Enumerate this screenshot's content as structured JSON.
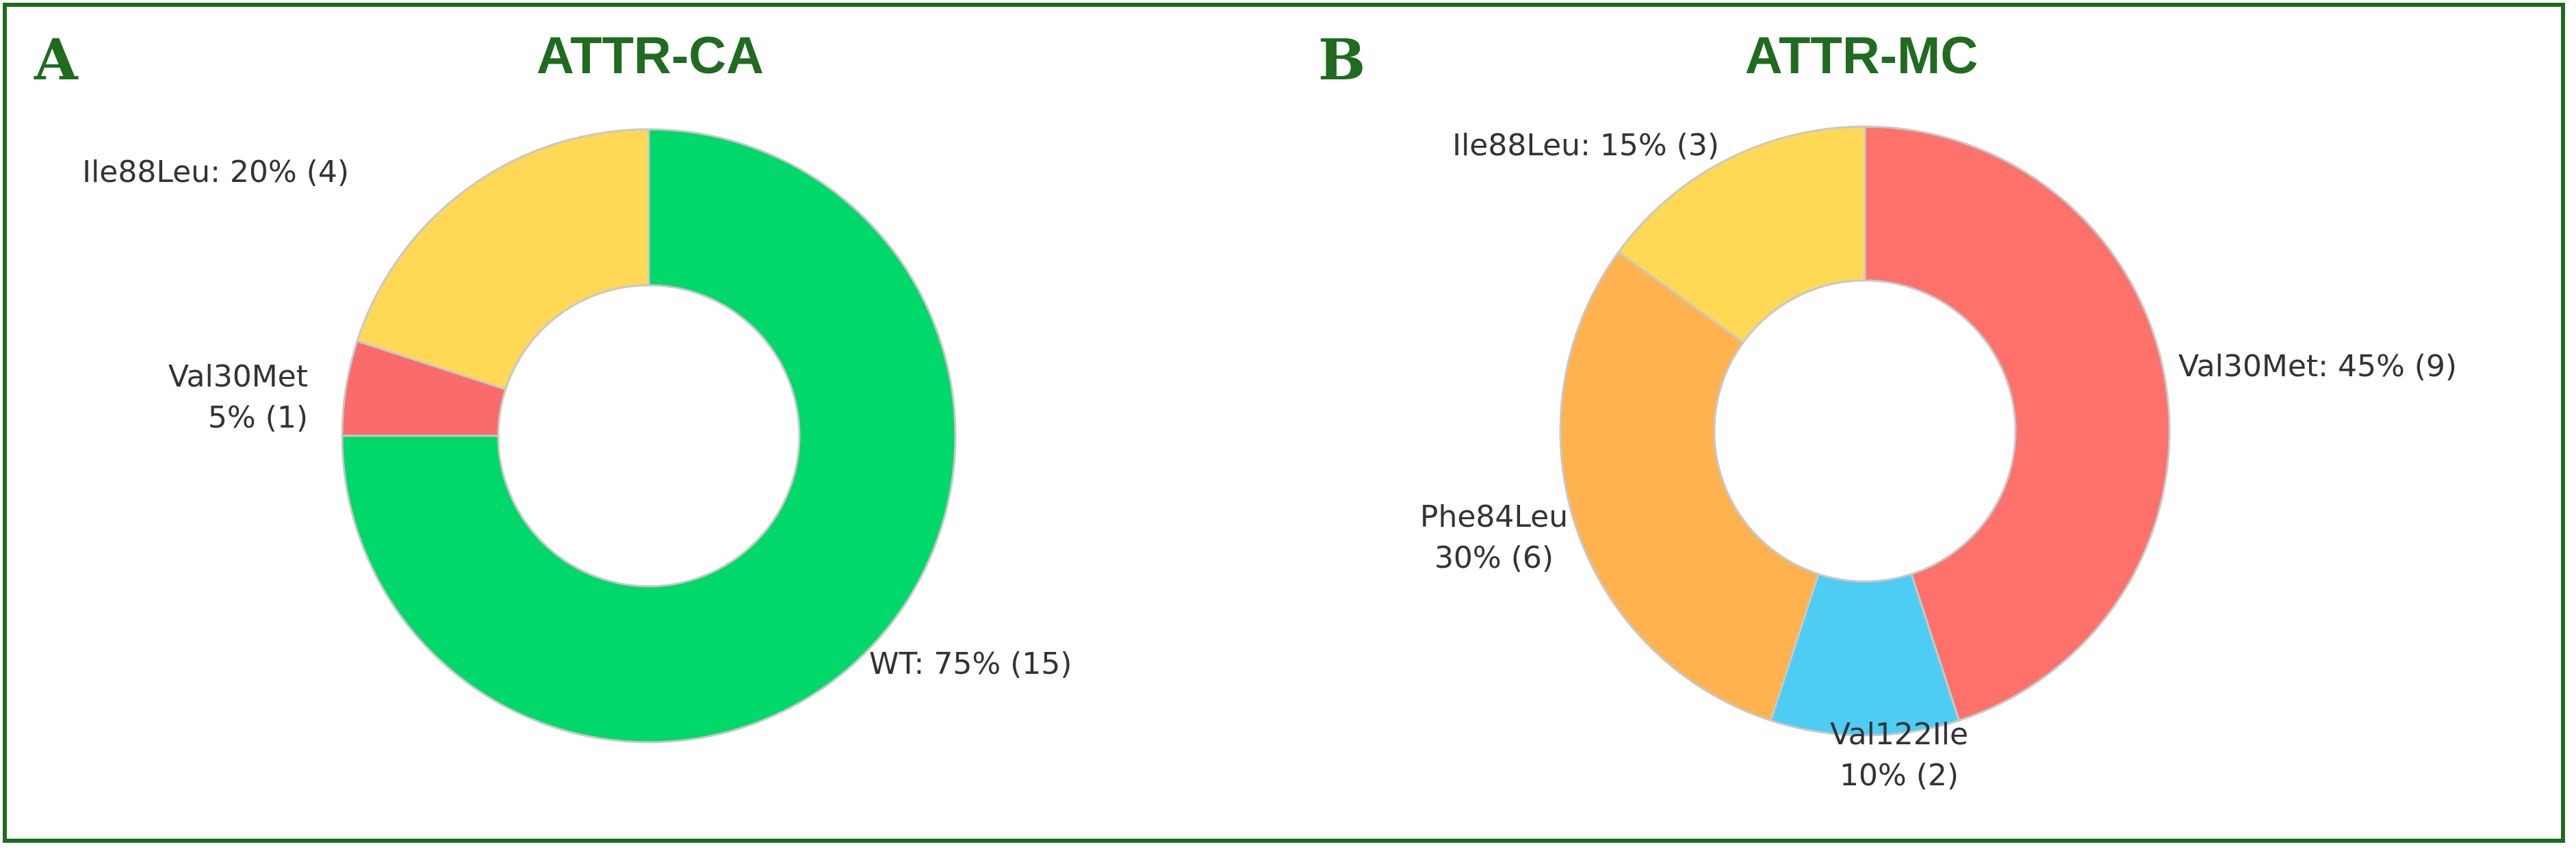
{
  "panels": [
    {
      "letter": "A",
      "title": "ATTR-CA"
    },
    {
      "letter": "B",
      "title": "ATTR-MC"
    }
  ],
  "chart_data": [
    {
      "type": "pie",
      "style": "donut",
      "title": "ATTR-CA",
      "slices": [
        {
          "name": "WT",
          "percent": 75,
          "count": 15,
          "color": "#00d86a",
          "label_lines": [
            "WT: 75% (15)"
          ]
        },
        {
          "name": "Val30Met",
          "percent": 5,
          "count": 1,
          "color": "#fa6b6b",
          "label_lines": [
            "Val30Met",
            "5% (1)"
          ]
        },
        {
          "name": "Ile88Leu",
          "percent": 20,
          "count": 4,
          "color": "#ffd855",
          "label_lines": [
            "Ile88Leu: 20% (4)"
          ]
        }
      ]
    },
    {
      "type": "pie",
      "style": "donut",
      "title": "ATTR-MC",
      "slices": [
        {
          "name": "Val30Met",
          "percent": 45,
          "count": 9,
          "color": "#ff716b",
          "label_lines": [
            "Val30Met: 45% (9)"
          ]
        },
        {
          "name": "Val122Ile",
          "percent": 10,
          "count": 2,
          "color": "#4dcdf3",
          "label_lines": [
            "Val122Ile",
            "10% (2)"
          ]
        },
        {
          "name": "Phe84Leu",
          "percent": 30,
          "count": 6,
          "color": "#ffb24e",
          "label_lines": [
            "Phe84Leu",
            "30% (6)"
          ]
        },
        {
          "name": "Ile88Leu",
          "percent": 15,
          "count": 3,
          "color": "#ffd855",
          "label_lines": [
            "Ile88Leu: 15% (3)"
          ]
        }
      ]
    }
  ]
}
